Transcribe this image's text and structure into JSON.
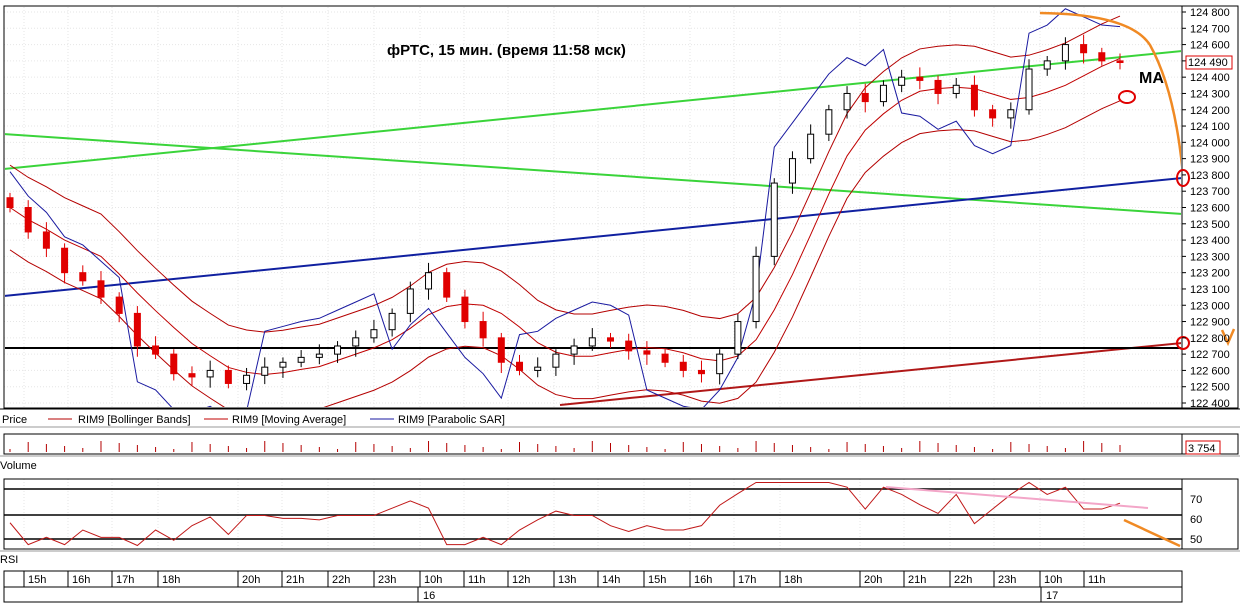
{
  "window": {
    "annotation_title": "фРТС,  15 мин.  (время 11:58 мск)",
    "ma_label": "MA"
  },
  "price_panel": {
    "legend": [
      "Price",
      "RIM9 [Bollinger Bands]",
      "RIM9 [Moving Average]",
      "RIM9 [Parabolic SAR]"
    ],
    "current_price_label": "124 490",
    "y_ticks": [
      "124 800",
      "124 700",
      "124 600",
      "124 500",
      "124 400",
      "124 300",
      "124 200",
      "124 100",
      "124 000",
      "123 900",
      "123 800",
      "123 700",
      "123 600",
      "123 500",
      "123 400",
      "123 300",
      "123 200",
      "123 100",
      "123 000",
      "122 900",
      "122 800",
      "122 700",
      "122 600",
      "122 500",
      "122 400"
    ]
  },
  "volume_panel": {
    "label": "Volume",
    "current_value_label": "3 754"
  },
  "rsi_panel": {
    "label": "RSI",
    "y_ticks": [
      "70",
      "60",
      "50"
    ]
  },
  "time_axis": {
    "hour_labels": [
      "15h",
      "16h",
      "17h",
      "18h",
      "20h",
      "21h",
      "22h",
      "23h",
      "10h",
      "11h",
      "12h",
      "13h",
      "14h",
      "15h",
      "16h",
      "17h",
      "18h",
      "20h",
      "21h",
      "22h",
      "23h",
      "10h",
      "11h"
    ],
    "day_labels": [
      "16",
      "17"
    ]
  },
  "colors": {
    "up_candle": "#ffffff",
    "down_candle": "#e00000",
    "bollinger": "#b40000",
    "moving_average": "#c00000",
    "parabolic_sar": "#1a1aa0",
    "green_trendline": "#3ad43a",
    "blue_trendline": "#1020a0",
    "red_trendline": "#b01818",
    "forecast_arrow": "#f08a24",
    "rsi_resistance": "#f3a6c8",
    "rsi_line": "#c01818"
  },
  "chart_data": {
    "type": "candlestick",
    "symbol": "RIM9",
    "timeframe": "15 мин.",
    "ylim": [
      122400,
      124800
    ],
    "close": [
      123600,
      123450,
      123350,
      123200,
      123150,
      123050,
      122950,
      122750,
      122700,
      122580,
      122560,
      122600,
      122520,
      122570,
      122620,
      122650,
      122680,
      122700,
      122750,
      122800,
      122850,
      122950,
      123100,
      123200,
      123050,
      122900,
      122800,
      122650,
      122600,
      122620,
      122700,
      122750,
      122800,
      122780,
      122720,
      122700,
      122650,
      122600,
      122580,
      122700,
      122900,
      123300,
      123750,
      123900,
      124050,
      124200,
      124300,
      124250,
      124350,
      124400,
      124380,
      124300,
      124350,
      124200,
      124150,
      124200,
      124450,
      124500,
      124600,
      124550,
      124500,
      124490
    ]
  }
}
